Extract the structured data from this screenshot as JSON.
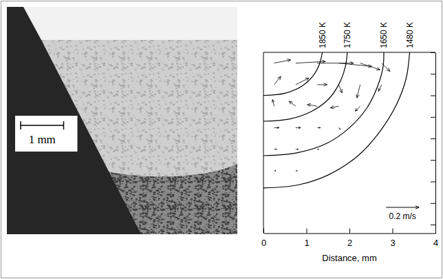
{
  "chart_data": [
    {
      "type": "micrograph",
      "scale_bar": {
        "value": 1,
        "label": "1 mm"
      }
    },
    {
      "type": "contour",
      "xlabel": "Distance, mm",
      "xlim": [
        0,
        4
      ],
      "xticks": [
        0,
        1,
        2,
        3,
        4
      ],
      "ylim": [
        -4.2,
        0
      ],
      "yticks": [
        -4,
        -3.5,
        -3,
        -2.5,
        -2,
        -1.5,
        -1,
        -0.5,
        0
      ],
      "tick_labels": "x",
      "color": "#000000",
      "series": [
        {
          "name": "1850 K",
          "x": [
            0,
            0.5,
            0.9,
            1.15,
            1.3,
            1.37
          ],
          "values": [
            -1.0,
            -0.95,
            -0.78,
            -0.55,
            -0.28,
            0
          ]
        },
        {
          "name": "1750 K",
          "x": [
            0,
            0.6,
            1.1,
            1.5,
            1.75,
            1.9,
            1.95
          ],
          "values": [
            -1.6,
            -1.55,
            -1.38,
            -1.1,
            -0.75,
            -0.35,
            0
          ]
        },
        {
          "name": "1650 K",
          "x": [
            0,
            0.8,
            1.5,
            2.0,
            2.4,
            2.65,
            2.78,
            2.8
          ],
          "values": [
            -2.4,
            -2.33,
            -2.1,
            -1.75,
            -1.3,
            -0.8,
            -0.35,
            0
          ]
        },
        {
          "name": "1480 K",
          "x": [
            0,
            0.8,
            1.5,
            2.2,
            2.7,
            3.1,
            3.32,
            3.4
          ],
          "values": [
            -3.15,
            -3.08,
            -2.85,
            -2.4,
            -1.85,
            -1.2,
            -0.6,
            0
          ]
        }
      ],
      "vectors": {
        "x": [
          0.25,
          0.75,
          1.25,
          1.75,
          2.25,
          2.75,
          0.25,
          0.75,
          1.25,
          1.75,
          2.25,
          2.75,
          0.25,
          0.75,
          1.25,
          1.75,
          2.25,
          0.25,
          0.75,
          1.25,
          1.75,
          0.25,
          0.75,
          1.25,
          0.25,
          0.75
        ],
        "y": [
          -0.25,
          -0.25,
          -0.25,
          -0.25,
          -0.25,
          -0.25,
          -0.75,
          -0.75,
          -0.75,
          -0.75,
          -0.75,
          -0.75,
          -1.25,
          -1.25,
          -1.25,
          -1.25,
          -1.25,
          -1.75,
          -1.75,
          -1.75,
          -1.75,
          -2.25,
          -2.25,
          -2.25,
          -2.75,
          -2.75
        ],
        "u": [
          0.1,
          0.18,
          0.22,
          0.2,
          0.12,
          0.05,
          0.04,
          0.08,
          0.06,
          0.02,
          -0.02,
          -0.02,
          -0.01,
          -0.04,
          -0.06,
          -0.05,
          -0.03,
          0.03,
          0.03,
          0.02,
          0.01,
          0.015,
          0.015,
          0.01,
          0.01,
          0.01
        ],
        "v": [
          0.02,
          0.01,
          0,
          -0.02,
          -0.04,
          -0.05,
          0.05,
          0.04,
          0,
          -0.05,
          -0.08,
          -0.04,
          0.04,
          0.03,
          0.01,
          -0.01,
          -0.03,
          0,
          0,
          0,
          -0.01,
          0,
          0,
          0,
          0,
          0
        ]
      },
      "reference_vector": {
        "value": 0.2,
        "label": "0.2 m/s"
      }
    }
  ]
}
